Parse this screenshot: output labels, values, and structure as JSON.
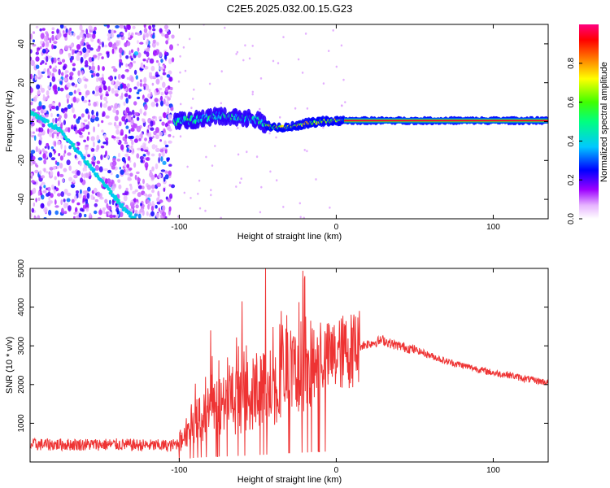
{
  "title": "C2E5.2025.032.00.15.G23",
  "chart_data": [
    {
      "type": "heatmap",
      "name": "spectrogram",
      "xlabel": "Height of straight line (km)",
      "ylabel": "Frequency (Hz)",
      "xlim": [
        -195,
        135
      ],
      "ylim": [
        -50,
        50
      ],
      "x_ticks": [
        -100,
        0,
        100
      ],
      "x_tick_labels": [
        "-100",
        "0",
        "100"
      ],
      "y_ticks": [
        -40,
        -20,
        0,
        20,
        40
      ],
      "y_tick_labels": [
        "-40",
        "-20",
        "0",
        "20",
        "40"
      ],
      "colorbar": {
        "label": "Normalized spectral amplitude",
        "range": [
          0,
          1
        ],
        "ticks": [
          0.0,
          0.2,
          0.4,
          0.6,
          0.8
        ],
        "tick_labels": [
          "0.0",
          "0.2",
          "0.4",
          "0.6",
          "0.8"
        ],
        "colors": [
          "#ffffff",
          "#9d00ff",
          "#0000ff",
          "#00c8ff",
          "#00ff00",
          "#ffff00",
          "#ff8000",
          "#ff0000",
          "#ff0080"
        ]
      },
      "features": [
        {
          "name": "noise region",
          "x_range": [
            -195,
            -104
          ],
          "amplitude": 0.15
        },
        {
          "name": "descending track",
          "points": [
            [
              -195,
              5
            ],
            [
              -175,
              -5
            ],
            [
              -160,
              -20
            ],
            [
              -145,
              -35
            ],
            [
              -135,
              -45
            ],
            [
              -128,
              -50
            ]
          ],
          "amplitude": 0.35
        },
        {
          "name": "signal track",
          "points": [
            [
              -103,
              0
            ],
            [
              -90,
              1
            ],
            [
              -75,
              3
            ],
            [
              -60,
              2
            ],
            [
              -50,
              1
            ],
            [
              -45,
              -2
            ],
            [
              -40,
              -3
            ],
            [
              -30,
              -3
            ],
            [
              -20,
              -1
            ],
            [
              -10,
              0
            ],
            [
              0,
              0.5
            ],
            [
              20,
              0.5
            ],
            [
              60,
              0.5
            ],
            [
              100,
              0.5
            ],
            [
              135,
              0.5
            ]
          ],
          "amplitude": [
            0.4,
            0.55,
            0.7,
            0.85,
            0.95
          ]
        }
      ]
    },
    {
      "type": "line",
      "name": "snr",
      "xlabel": "Height of straight line (km)",
      "ylabel": "SNR (10 * v/v)",
      "xlim": [
        -195,
        135
      ],
      "ylim": [
        0,
        5000
      ],
      "x_ticks": [
        -100,
        0,
        100
      ],
      "x_tick_labels": [
        "-100",
        "0",
        "100"
      ],
      "y_ticks": [
        1000,
        2000,
        3000,
        4000,
        5000
      ],
      "y_tick_labels": [
        "1000",
        "2000",
        "3000",
        "4000",
        "5000"
      ],
      "color": "#ee3333",
      "series": [
        {
          "x": [
            -195,
            -180,
            -160,
            -140,
            -120,
            -105,
            -100,
            -95,
            -90,
            -85,
            -80,
            -75,
            -70,
            -65,
            -60,
            -55,
            -50,
            -45,
            -40,
            -35,
            -30,
            -25,
            -20,
            -15,
            -10,
            -5,
            0,
            5,
            10,
            15,
            20,
            25,
            30,
            35,
            40,
            45,
            50,
            60,
            70,
            80,
            90,
            100,
            110,
            120,
            135
          ],
          "y": [
            450,
            450,
            450,
            450,
            430,
            420,
            500,
            800,
            1100,
            1200,
            1300,
            1400,
            1450,
            1550,
            1600,
            1700,
            1800,
            1900,
            2000,
            2150,
            2250,
            2350,
            2450,
            2550,
            2650,
            2700,
            2750,
            2850,
            2900,
            3000,
            3050,
            3100,
            3150,
            3050,
            3000,
            2950,
            2900,
            2750,
            2600,
            2500,
            2400,
            2300,
            2250,
            2150,
            2050
          ]
        }
      ],
      "spikes": [
        [
          -45,
          5000
        ],
        [
          -20,
          4800
        ],
        [
          -60,
          4150
        ],
        [
          -80,
          3400
        ],
        [
          -35,
          3900
        ],
        [
          -10,
          3600
        ]
      ]
    }
  ]
}
